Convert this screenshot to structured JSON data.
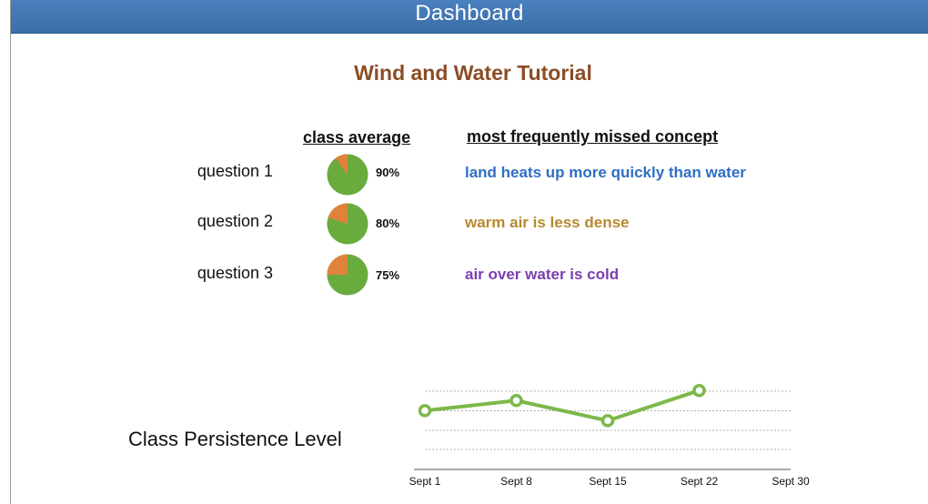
{
  "header": {
    "title": "Dashboard"
  },
  "tutorial": {
    "title": "Wind and Water Tutorial"
  },
  "columns": {
    "class_average": "class average",
    "missed_concept": "most frequently missed concept"
  },
  "questions": [
    {
      "label": "question 1",
      "average_pct": 90,
      "average_label": "90%",
      "missed_concept": "land heats up more quickly than water",
      "concept_color": "#2f6fc4"
    },
    {
      "label": "question 2",
      "average_pct": 80,
      "average_label": "80%",
      "missed_concept": "warm air is less dense",
      "concept_color": "#b5892f"
    },
    {
      "label": "question 3",
      "average_pct": 75,
      "average_label": "75%",
      "missed_concept": "air over water is cold",
      "concept_color": "#7a3fb0"
    }
  ],
  "pie_colors": {
    "correct": "#6aab3e",
    "missed": "#e0823a"
  },
  "persistence": {
    "label": "Class Persistence Level"
  },
  "chart_data": {
    "type": "line",
    "x": [
      "Sept 1",
      "Sept 8",
      "Sept 15",
      "Sept 22"
    ],
    "tick_labels": [
      "Sept 1",
      "Sept 8",
      "Sept 15",
      "Sept 22",
      "Sept 30"
    ],
    "values": [
      2.7,
      3.4,
      2.0,
      4.1
    ],
    "ylim": [
      0,
      4.1
    ],
    "grid": true,
    "line_color": "#7cb84a"
  }
}
